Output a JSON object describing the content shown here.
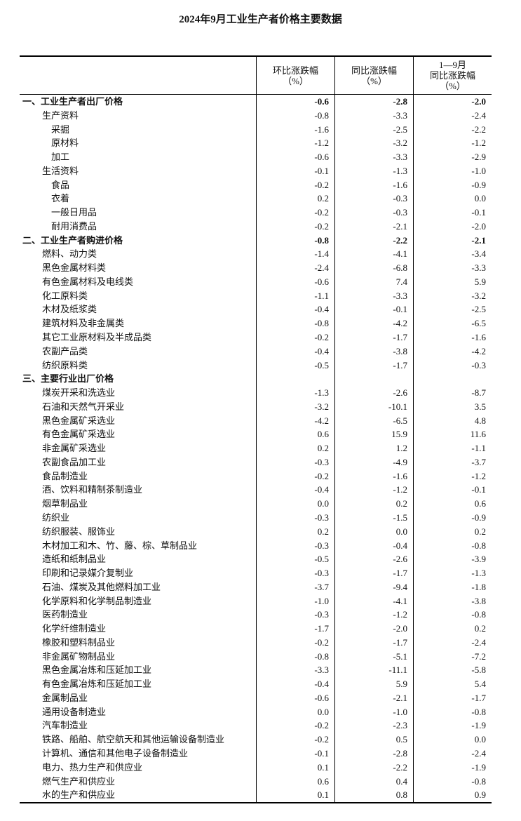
{
  "title": "2024年9月工业生产者价格主要数据",
  "headers": [
    {
      "lines": [
        "环比涨跌幅",
        "（%）"
      ]
    },
    {
      "lines": [
        "同比涨跌幅",
        "（%）"
      ]
    },
    {
      "lines": [
        "1—9月",
        "同比涨跌幅",
        "（%）"
      ]
    }
  ],
  "rows": [
    {
      "label": "一、工业生产者出厂价格",
      "level": 0,
      "bold": true,
      "values": [
        "-0.6",
        "-2.8",
        "-2.0"
      ]
    },
    {
      "label": "生产资料",
      "level": 1,
      "values": [
        "-0.8",
        "-3.3",
        "-2.4"
      ]
    },
    {
      "label": "采掘",
      "level": 2,
      "values": [
        "-1.6",
        "-2.5",
        "-2.2"
      ]
    },
    {
      "label": "原材料",
      "level": 2,
      "values": [
        "-1.2",
        "-3.2",
        "-1.2"
      ]
    },
    {
      "label": "加工",
      "level": 2,
      "values": [
        "-0.6",
        "-3.3",
        "-2.9"
      ]
    },
    {
      "label": "生活资料",
      "level": 1,
      "values": [
        "-0.1",
        "-1.3",
        "-1.0"
      ]
    },
    {
      "label": "食品",
      "level": 2,
      "values": [
        "-0.2",
        "-1.6",
        "-0.9"
      ]
    },
    {
      "label": "衣着",
      "level": 2,
      "values": [
        "0.2",
        "-0.3",
        "0.0"
      ]
    },
    {
      "label": "一般日用品",
      "level": 2,
      "values": [
        "-0.2",
        "-0.3",
        "-0.1"
      ]
    },
    {
      "label": "耐用消费品",
      "level": 2,
      "values": [
        "-0.2",
        "-2.1",
        "-2.0"
      ]
    },
    {
      "label": "二、工业生产者购进价格",
      "level": 0,
      "bold": true,
      "values": [
        "-0.8",
        "-2.2",
        "-2.1"
      ]
    },
    {
      "label": "燃料、动力类",
      "level": 1,
      "values": [
        "-1.4",
        "-4.1",
        "-3.4"
      ]
    },
    {
      "label": "黑色金属材料类",
      "level": 1,
      "values": [
        "-2.4",
        "-6.8",
        "-3.3"
      ]
    },
    {
      "label": "有色金属材料及电线类",
      "level": 1,
      "values": [
        "-0.6",
        "7.4",
        "5.9"
      ]
    },
    {
      "label": "化工原料类",
      "level": 1,
      "values": [
        "-1.1",
        "-3.3",
        "-3.2"
      ]
    },
    {
      "label": "木材及纸浆类",
      "level": 1,
      "values": [
        "-0.4",
        "-0.1",
        "-2.5"
      ]
    },
    {
      "label": "建筑材料及非金属类",
      "level": 1,
      "values": [
        "-0.8",
        "-4.2",
        "-6.5"
      ]
    },
    {
      "label": "其它工业原材料及半成品类",
      "level": 1,
      "values": [
        "-0.2",
        "-1.7",
        "-1.6"
      ]
    },
    {
      "label": "农副产品类",
      "level": 1,
      "values": [
        "-0.4",
        "-3.8",
        "-4.2"
      ]
    },
    {
      "label": "纺织原料类",
      "level": 1,
      "values": [
        "-0.5",
        "-1.7",
        "-0.3"
      ]
    },
    {
      "label": "三、主要行业出厂价格",
      "level": 0,
      "bold": true,
      "values": [
        "",
        "",
        ""
      ]
    },
    {
      "label": "煤炭开采和洗选业",
      "level": 1,
      "values": [
        "-1.3",
        "-2.6",
        "-8.7"
      ]
    },
    {
      "label": "石油和天然气开采业",
      "level": 1,
      "values": [
        "-3.2",
        "-10.1",
        "3.5"
      ]
    },
    {
      "label": "黑色金属矿采选业",
      "level": 1,
      "values": [
        "-4.2",
        "-6.5",
        "4.8"
      ]
    },
    {
      "label": "有色金属矿采选业",
      "level": 1,
      "values": [
        "0.6",
        "15.9",
        "11.6"
      ]
    },
    {
      "label": "非金属矿采选业",
      "level": 1,
      "values": [
        "0.2",
        "1.2",
        "-1.1"
      ]
    },
    {
      "label": "农副食品加工业",
      "level": 1,
      "values": [
        "-0.3",
        "-4.9",
        "-3.7"
      ]
    },
    {
      "label": "食品制造业",
      "level": 1,
      "values": [
        "-0.2",
        "-1.6",
        "-1.2"
      ]
    },
    {
      "label": "酒、饮料和精制茶制造业",
      "level": 1,
      "values": [
        "-0.4",
        "-1.2",
        "-0.1"
      ]
    },
    {
      "label": "烟草制品业",
      "level": 1,
      "values": [
        "0.0",
        "0.2",
        "0.6"
      ]
    },
    {
      "label": "纺织业",
      "level": 1,
      "values": [
        "-0.3",
        "-1.5",
        "-0.9"
      ]
    },
    {
      "label": "纺织服装、服饰业",
      "level": 1,
      "values": [
        "0.2",
        "0.0",
        "0.2"
      ]
    },
    {
      "label": "木材加工和木、竹、藤、棕、草制品业",
      "level": 1,
      "values": [
        "-0.3",
        "-0.4",
        "-0.8"
      ]
    },
    {
      "label": "造纸和纸制品业",
      "level": 1,
      "values": [
        "-0.5",
        "-2.6",
        "-3.9"
      ]
    },
    {
      "label": "印刷和记录媒介复制业",
      "level": 1,
      "values": [
        "-0.3",
        "-1.7",
        "-1.3"
      ]
    },
    {
      "label": "石油、煤炭及其他燃料加工业",
      "level": 1,
      "values": [
        "-3.7",
        "-9.4",
        "-1.8"
      ]
    },
    {
      "label": "化学原料和化学制品制造业",
      "level": 1,
      "values": [
        "-1.0",
        "-4.1",
        "-3.8"
      ]
    },
    {
      "label": "医药制造业",
      "level": 1,
      "values": [
        "-0.3",
        "-1.2",
        "-0.8"
      ]
    },
    {
      "label": "化学纤维制造业",
      "level": 1,
      "values": [
        "-1.7",
        "-2.0",
        "0.2"
      ]
    },
    {
      "label": "橡胶和塑料制品业",
      "level": 1,
      "values": [
        "-0.2",
        "-1.7",
        "-2.4"
      ]
    },
    {
      "label": "非金属矿物制品业",
      "level": 1,
      "values": [
        "-0.8",
        "-5.1",
        "-7.2"
      ]
    },
    {
      "label": "黑色金属冶炼和压延加工业",
      "level": 1,
      "values": [
        "-3.3",
        "-11.1",
        "-5.8"
      ]
    },
    {
      "label": "有色金属冶炼和压延加工业",
      "level": 1,
      "values": [
        "-0.4",
        "5.9",
        "5.4"
      ]
    },
    {
      "label": "金属制品业",
      "level": 1,
      "values": [
        "-0.6",
        "-2.1",
        "-1.7"
      ]
    },
    {
      "label": "通用设备制造业",
      "level": 1,
      "values": [
        "0.0",
        "-1.0",
        "-0.8"
      ]
    },
    {
      "label": "汽车制造业",
      "level": 1,
      "values": [
        "-0.2",
        "-2.3",
        "-1.9"
      ]
    },
    {
      "label": "铁路、船舶、航空航天和其他运输设备制造业",
      "level": 1,
      "values": [
        "-0.2",
        "0.5",
        "0.0"
      ]
    },
    {
      "label": "计算机、通信和其他电子设备制造业",
      "level": 1,
      "values": [
        "-0.1",
        "-2.8",
        "-2.4"
      ]
    },
    {
      "label": "电力、热力生产和供应业",
      "level": 1,
      "values": [
        "0.1",
        "-2.2",
        "-1.9"
      ]
    },
    {
      "label": "燃气生产和供应业",
      "level": 1,
      "values": [
        "0.6",
        "0.4",
        "-0.8"
      ]
    },
    {
      "label": "水的生产和供应业",
      "level": 1,
      "values": [
        "0.1",
        "0.8",
        "0.9"
      ]
    }
  ]
}
